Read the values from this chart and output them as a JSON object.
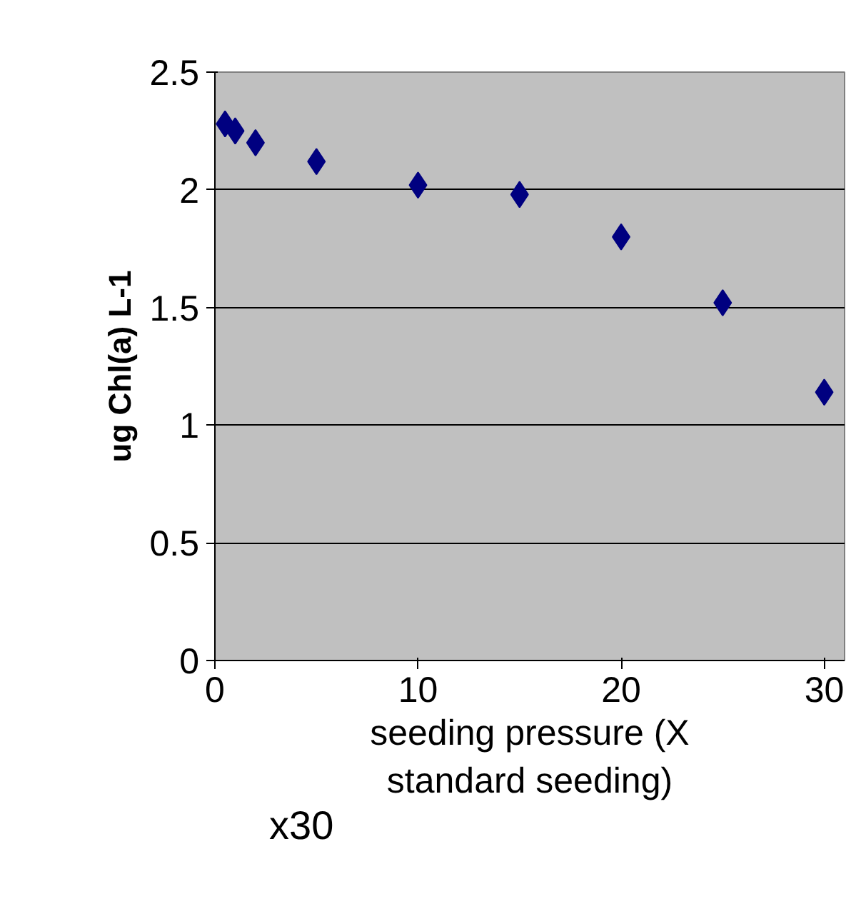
{
  "chart_data": {
    "type": "scatter",
    "xlabel": "seeding pressure (X standard seeding)",
    "ylabel": "ug Chl(a) L-1",
    "x": [
      0.5,
      1,
      2,
      5,
      10,
      15,
      20,
      25,
      30
    ],
    "series": [
      {
        "color": "#000080",
        "values": [
          2.28,
          2.25,
          2.2,
          2.12,
          2.02,
          1.98,
          1.8,
          1.52,
          1.14
        ]
      }
    ],
    "xlim": [
      0,
      31
    ],
    "xticks": [
      0,
      10,
      20,
      30
    ],
    "ylim": [
      0,
      2.5
    ],
    "yticks": [
      0,
      0.5,
      1,
      1.5,
      2,
      2.5
    ],
    "grid": "y",
    "marker": "diamond",
    "annotations": [
      "x30"
    ]
  }
}
